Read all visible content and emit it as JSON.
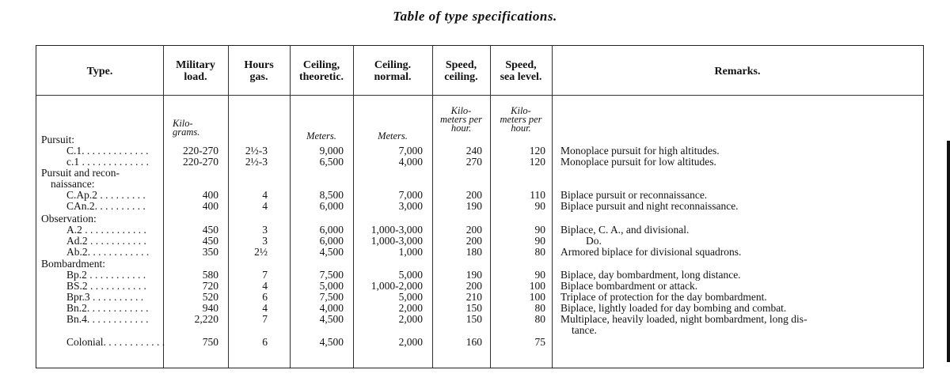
{
  "title": "Table of type specifications.",
  "headers": {
    "type": [
      "Type."
    ],
    "military_load": [
      "Military",
      "load."
    ],
    "hours_gas": [
      "Hours",
      "gas."
    ],
    "ceiling_theoretic": [
      "Ceiling,",
      "theoretic."
    ],
    "ceiling_normal": [
      "Ceiling.",
      "normal."
    ],
    "speed_ceiling": [
      "Speed,",
      "ceiling."
    ],
    "speed_sea_level": [
      "Speed,",
      "sea level."
    ],
    "remarks": [
      "Remarks."
    ]
  },
  "units": {
    "military_load": [
      "Kilo-",
      "grams."
    ],
    "ceiling_theoretic": [
      "Meters."
    ],
    "ceiling_normal": [
      "Meters."
    ],
    "speed_ceiling": [
      "Kilo-",
      "meters per",
      "hour."
    ],
    "speed_sea_level": [
      "Kilo-",
      "meters per",
      "hour."
    ]
  },
  "rows": [
    {
      "type": "Pursuit:",
      "kind": "group"
    },
    {
      "type": "C.1. . . . . . . . . . . . .",
      "load": "220-270",
      "hours": "2½-3",
      "ceil_t": "9,000",
      "ceil_n": "7,000",
      "speed_c": "240",
      "speed_s": "120",
      "remarks": "Monoplace pursuit for high altitudes."
    },
    {
      "type": "c.1 . . . . . . . . . . . . .",
      "load": "220-270",
      "hours": "2½-3",
      "ceil_t": "6,500",
      "ceil_n": "4,000",
      "speed_c": "270",
      "speed_s": "120",
      "remarks": "Monoplace pursuit for low altitudes."
    },
    {
      "type": "Pursuit and recon-",
      "kind": "group"
    },
    {
      "type": "naissance:",
      "kind": "group2"
    },
    {
      "type": "C.Ap.2 . . . . . . . . .",
      "load": "400",
      "hours": "4",
      "ceil_t": "8,500",
      "ceil_n": "7,000",
      "speed_c": "200",
      "speed_s": "110",
      "remarks": "Biplace pursuit or reconnaissance."
    },
    {
      "type": "CAn.2. . . . . . . . . .",
      "load": "400",
      "hours": "4",
      "ceil_t": "6,000",
      "ceil_n": "3,000",
      "speed_c": "190",
      "speed_s": "90",
      "remarks": "Biplace pursuit and night reconnaissance."
    },
    {
      "type": "Observation:",
      "kind": "group"
    },
    {
      "type": "A.2 . . . . . . . . . . . .",
      "load": "450",
      "hours": "3",
      "ceil_t": "6,000",
      "ceil_n": "1,000-3,000",
      "speed_c": "200",
      "speed_s": "90",
      "remarks": "Biplace, C. A., and divisional."
    },
    {
      "type": "Ad.2 . . . . . . . . . . .",
      "load": "450",
      "hours": "3",
      "ceil_t": "6,000",
      "ceil_n": "1,000-3,000",
      "speed_c": "200",
      "speed_s": "90",
      "remarks": "Do.",
      "remarks_indent": true
    },
    {
      "type": "Ab.2. . . . . . . . . . . .",
      "load": "350",
      "hours": "2½",
      "ceil_t": "4,500",
      "ceil_n": "1,000",
      "speed_c": "180",
      "speed_s": "80",
      "remarks": "Armored biplace for divisional squadrons."
    },
    {
      "type": "Bombardment:",
      "kind": "group"
    },
    {
      "type": "Bp.2 . . . . . . . . . . .",
      "load": "580",
      "hours": "7",
      "ceil_t": "7,500",
      "ceil_n": "5,000",
      "speed_c": "190",
      "speed_s": "90",
      "remarks": "Biplace, day bombardment, long distance."
    },
    {
      "type": "BS.2 . . . . . . . . . . .",
      "load": "720",
      "hours": "4",
      "ceil_t": "5,000",
      "ceil_n": "1,000-2,000",
      "speed_c": "200",
      "speed_s": "100",
      "remarks": "Biplace bombardment or attack."
    },
    {
      "type": "Bpr.3 . . . . . . . . . .",
      "load": "520",
      "hours": "6",
      "ceil_t": "7,500",
      "ceil_n": "5,000",
      "speed_c": "210",
      "speed_s": "100",
      "remarks": "Triplace of protection for the day bombardment."
    },
    {
      "type": "Bn.2. . . . . . . . . . . .",
      "load": "940",
      "hours": "4",
      "ceil_t": "4,000",
      "ceil_n": "2,000",
      "speed_c": "150",
      "speed_s": "80",
      "remarks": "Biplace, lightly loaded for day bombing and combat."
    },
    {
      "type": "Bn.4. . . . . . . . . . . .",
      "load": "2,220",
      "hours": "7",
      "ceil_t": "4,500",
      "ceil_n": "2,000",
      "speed_c": "150",
      "speed_s": "80",
      "remarks": "Multiplace, heavily loaded, night bombardment, long dis-",
      "remarks_cont": "tance."
    },
    {
      "type": "Colonial. . . . . . . . . . . .",
      "load": "750",
      "hours": "6",
      "ceil_t": "4,500",
      "ceil_n": "2,000",
      "speed_c": "160",
      "speed_s": "75",
      "remarks": ""
    }
  ]
}
